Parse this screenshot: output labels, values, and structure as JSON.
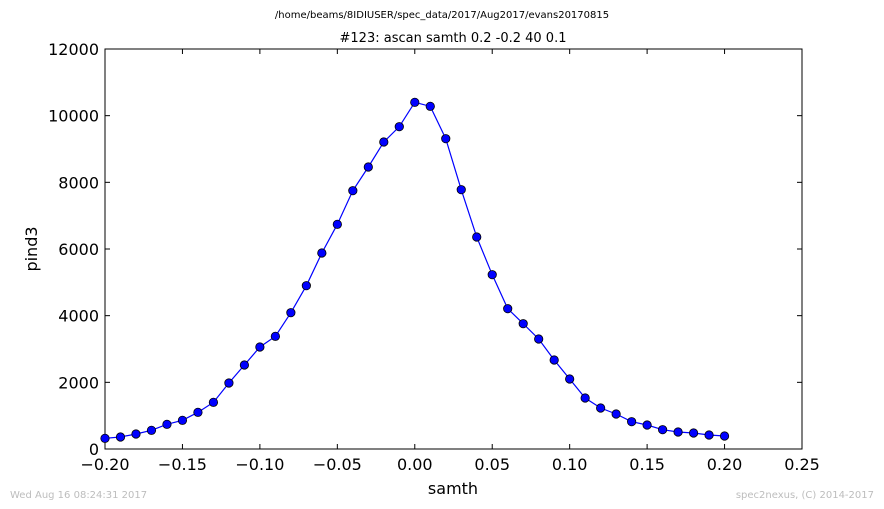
{
  "suptitle": "/home/beams/8IDIUSER/spec_data/2017/Aug2017/evans20170815",
  "footer": {
    "timestamp": "Wed Aug 16 08:24:31 2017",
    "credit": "spec2nexus, (C) 2014-2017"
  },
  "colors": {
    "series": "#0000ff",
    "axes": "#000000"
  },
  "chart_data": {
    "type": "line",
    "title": "#123: ascan  samth 0.2 -0.2  40 0.1",
    "xlabel": "samth",
    "ylabel": "pind3",
    "xlim": [
      -0.2,
      0.25
    ],
    "ylim": [
      0,
      12000
    ],
    "xticks": [
      -0.2,
      -0.15,
      -0.1,
      -0.05,
      0.0,
      0.05,
      0.1,
      0.15,
      0.2,
      0.25
    ],
    "xtick_labels": [
      "−0.20",
      "−0.15",
      "−0.10",
      "−0.05",
      "0.00",
      "0.05",
      "0.10",
      "0.15",
      "0.20",
      "0.25"
    ],
    "yticks": [
      0,
      2000,
      4000,
      6000,
      8000,
      10000,
      12000
    ],
    "ytick_labels": [
      "0",
      "2000",
      "4000",
      "6000",
      "8000",
      "10000",
      "12000"
    ],
    "grid": false,
    "marker": "circle",
    "series": [
      {
        "x": [
          -0.2,
          -0.19,
          -0.18,
          -0.17,
          -0.16,
          -0.15,
          -0.14,
          -0.13,
          -0.12,
          -0.11,
          -0.1,
          -0.09,
          -0.08,
          -0.07,
          -0.06,
          -0.05,
          -0.04,
          -0.03,
          -0.02,
          -0.01,
          0.0,
          0.01,
          0.02,
          0.03,
          0.04,
          0.05,
          0.06,
          0.07,
          0.08,
          0.09,
          0.1,
          0.11,
          0.12,
          0.13,
          0.14,
          0.15,
          0.16,
          0.17,
          0.18,
          0.19,
          0.2
        ],
        "y": [
          320,
          360,
          450,
          560,
          740,
          860,
          1100,
          1400,
          1980,
          2520,
          3060,
          3380,
          4090,
          4900,
          5880,
          6740,
          7750,
          8460,
          9210,
          9670,
          10400,
          10280,
          9310,
          7780,
          6360,
          5230,
          4210,
          3760,
          3300,
          2670,
          2100,
          1530,
          1230,
          1050,
          820,
          720,
          580,
          510,
          480,
          420,
          390
        ]
      }
    ]
  }
}
